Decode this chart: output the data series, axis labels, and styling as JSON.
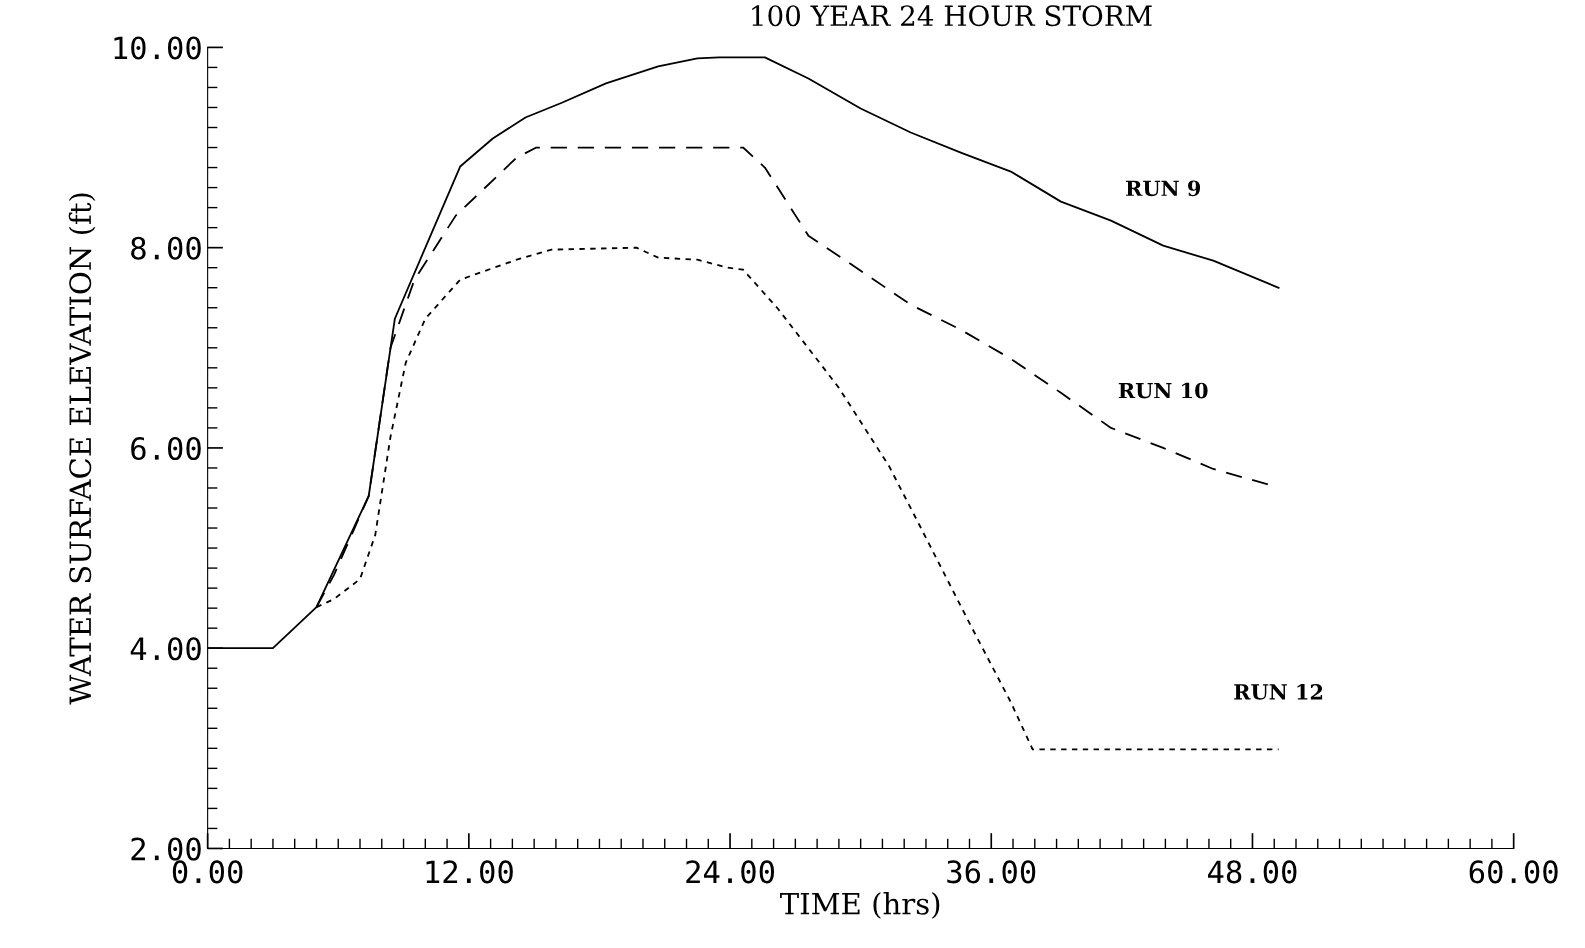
{
  "chart_data": {
    "type": "line",
    "title": "100 YEAR 24 HOUR STORM",
    "xlabel": "TIME (hrs)",
    "ylabel": "WATER SURFACE ELEVATION (ft)",
    "xlim": [
      0,
      60
    ],
    "ylim": [
      2,
      10
    ],
    "xticks": [
      {
        "value": 0,
        "label": "0.00"
      },
      {
        "value": 12,
        "label": "12.00"
      },
      {
        "value": 24,
        "label": "24.00"
      },
      {
        "value": 36,
        "label": "36.00"
      },
      {
        "value": 48,
        "label": "48.00"
      },
      {
        "value": 60,
        "label": "60.00"
      }
    ],
    "yticks": [
      {
        "value": 2,
        "label": "2.00"
      },
      {
        "value": 4,
        "label": "4.00"
      },
      {
        "value": 6,
        "label": "6.00"
      },
      {
        "value": 8,
        "label": "8.00"
      },
      {
        "value": 10,
        "label": "10.00"
      }
    ],
    "grid": false,
    "legend": false,
    "marker": "none",
    "series": [
      {
        "name": "RUN 9",
        "color": "#000000",
        "line_style": "solid",
        "x": [
          0,
          3.0,
          5.0,
          7.4,
          8.6,
          11.6,
          13.1,
          14.6,
          16.3,
          18.3,
          20.7,
          22.5,
          23.5,
          25.6,
          27.6,
          30.0,
          32.3,
          34.6,
          36.9,
          39.2,
          41.5,
          43.9,
          46.2,
          49.2
        ],
        "values": [
          4.0,
          4.0,
          4.41,
          5.52,
          7.29,
          8.81,
          9.09,
          9.3,
          9.45,
          9.64,
          9.81,
          9.89,
          9.9,
          9.9,
          9.69,
          9.39,
          9.15,
          8.95,
          8.76,
          8.46,
          8.27,
          8.02,
          7.87,
          7.6
        ]
      },
      {
        "name": "RUN 10",
        "color": "#000000",
        "line_style": "dashed",
        "x": [
          5.0,
          5.8,
          7.4,
          8.4,
          9.5,
          11.4,
          14.2,
          15.1,
          24.6,
          25.6,
          27.6,
          30.0,
          32.3,
          34.6,
          36.9,
          39.2,
          41.5,
          43.9,
          46.2,
          48.8
        ],
        "values": [
          4.41,
          4.73,
          5.52,
          7.0,
          7.68,
          8.32,
          8.9,
          9.0,
          9.0,
          8.8,
          8.12,
          7.77,
          7.43,
          7.18,
          6.89,
          6.55,
          6.2,
          6.0,
          5.79,
          5.63
        ]
      },
      {
        "name": "RUN 12",
        "color": "#000000",
        "line_style": "dotted",
        "x": [
          5.0,
          5.8,
          7.0,
          7.7,
          8.4,
          9.1,
          10.0,
          11.6,
          14.2,
          15.8,
          19.7,
          20.7,
          22.5,
          23.9,
          24.6,
          26.2,
          29.0,
          31.3,
          32.7,
          35.0,
          36.9,
          37.9,
          49.2
        ],
        "values": [
          4.41,
          4.49,
          4.69,
          5.13,
          6.11,
          6.85,
          7.29,
          7.68,
          7.88,
          7.98,
          8.0,
          7.9,
          7.88,
          7.8,
          7.78,
          7.39,
          6.6,
          5.82,
          5.23,
          4.25,
          3.46,
          2.99,
          2.99
        ]
      }
    ]
  }
}
